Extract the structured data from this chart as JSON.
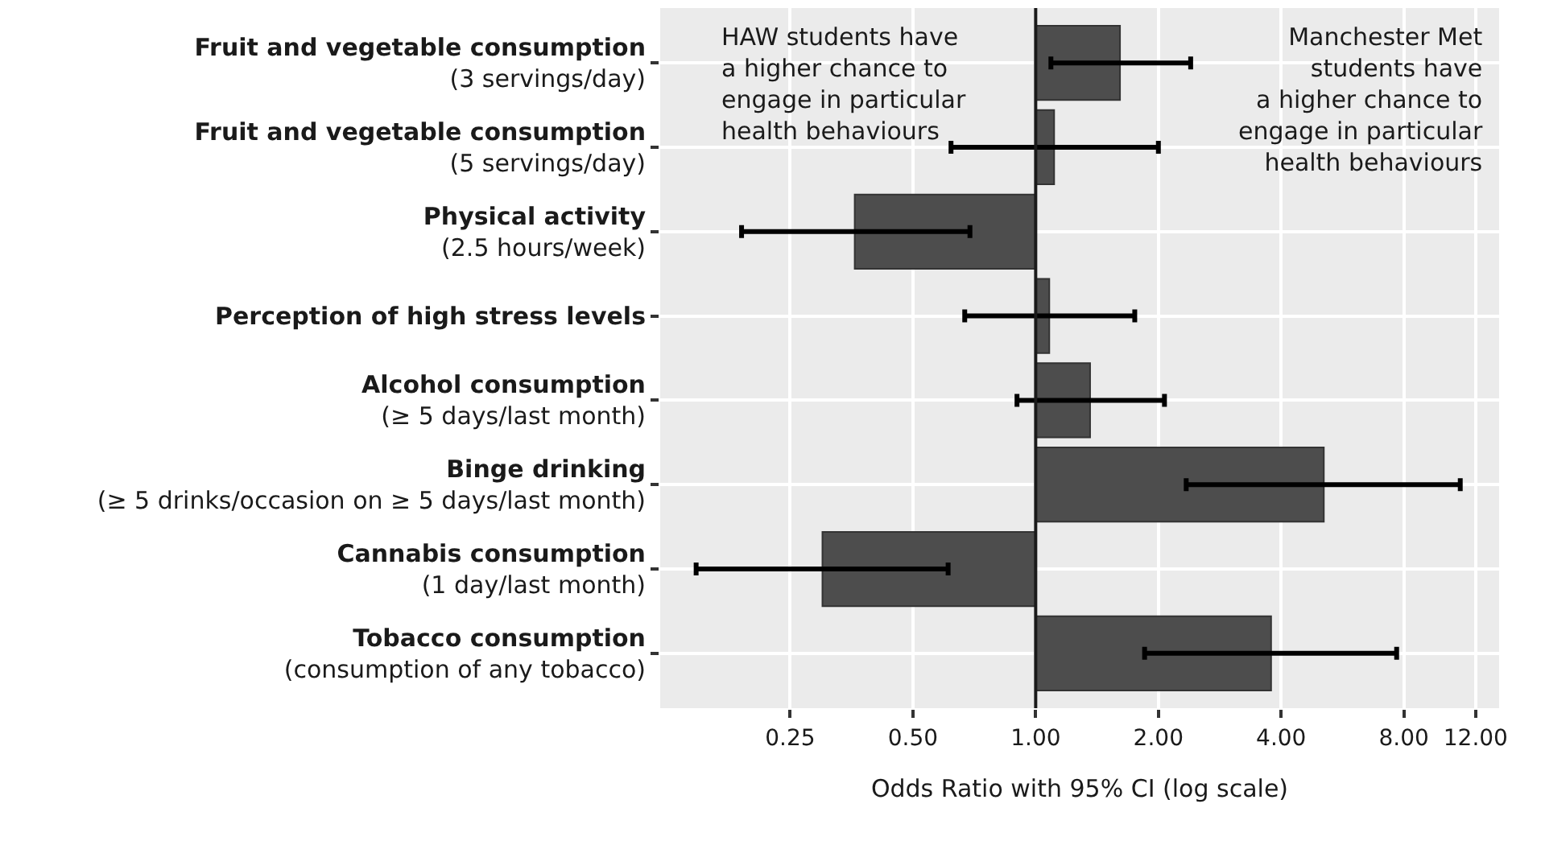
{
  "chart_data": {
    "type": "bar",
    "orientation": "horizontal",
    "log": "x",
    "xlabel": "Odds Ratio with 95% CI (log scale)",
    "categories": [
      "Fruit and vegetable consumption\n(3 servings/day)",
      "Fruit and vegetable consumption\n(5 servings/day)",
      "Physical activity\n(2.5 hours/week)",
      "Perception of high stress levels",
      "Alcohol consumption\n(≥ 5 days/last month)",
      "Binge drinking\n(≥ 5 drinks/occasion on ≥ 5 days/last month)",
      "Cannabis consumption\n(1 day/last month)",
      "Tobacco consumption\n(consumption of any tobacco)"
    ],
    "base": [
      1,
      1,
      1,
      1,
      1,
      1,
      1,
      1
    ],
    "values": [
      0.61,
      0.11,
      -0.64,
      0.08,
      0.36,
      4.09,
      -0.7,
      2.78
    ],
    "errors": [
      [
        1.09,
        2.4
      ],
      [
        0.62,
        2.0
      ],
      [
        0.19,
        0.69
      ],
      [
        0.67,
        1.75
      ],
      [
        0.9,
        2.07
      ],
      [
        2.34,
        11.0
      ],
      [
        0.147,
        0.61
      ],
      [
        1.85,
        7.68
      ]
    ],
    "color": "#4d4d4d",
    "xlim": [
      0.12,
      13.7
    ],
    "xticks": [
      {
        "value": 0.25,
        "label": "0.25"
      },
      {
        "value": 0.5,
        "label": "0.50"
      },
      {
        "value": 1,
        "label": "1.00"
      },
      {
        "value": 2,
        "label": "2.00"
      },
      {
        "value": 4,
        "label": "4.00"
      },
      {
        "value": 8,
        "label": "8.00"
      },
      {
        "value": 12,
        "label": "12.00"
      }
    ],
    "ref_lines": [
      {
        "axis": "x",
        "value": 1,
        "color": "#1a1a1a"
      }
    ],
    "annotations": [
      "HAW students have\na higher chance to\nengage in particular\nhealth behaviours",
      "Manchester Met\nstudents have\na higher chance to\nengage in particular\nhealth behaviours"
    ],
    "grid": true,
    "legend": false
  }
}
